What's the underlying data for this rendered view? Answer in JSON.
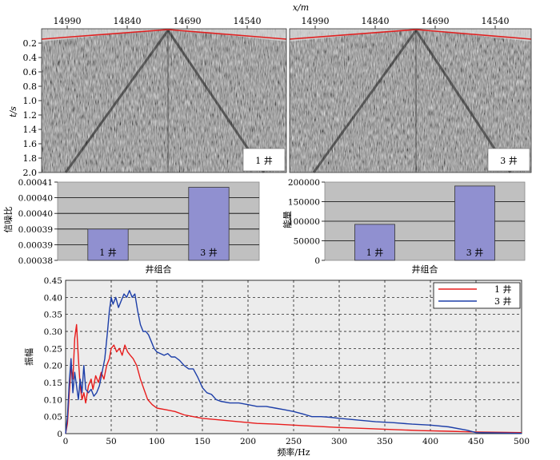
{
  "chart_data": [
    {
      "type": "seismic-image",
      "xlabel": "x/m",
      "ylabel": "t/s",
      "x_ticks": [
        "14990",
        "14840",
        "14690",
        "14540"
      ],
      "y_ticks": [
        "0.2",
        "0.4",
        "0.6",
        "0.8",
        "1.0",
        "1.2",
        "1.4",
        "1.6",
        "1.8",
        "2.0"
      ],
      "ylim": [
        0,
        2.0
      ],
      "panels": [
        {
          "label": "1 井"
        },
        {
          "label": "3 井"
        }
      ]
    },
    {
      "type": "bar",
      "ylabel": "信噪比",
      "xlabel": "井组合",
      "categories": [
        "1 井",
        "3 井"
      ],
      "values": [
        0.000392,
        0.000408
      ],
      "ylim": [
        0.00038,
        0.00041
      ],
      "y_ticks": [
        "0.00041",
        "0.00040",
        "0.00040",
        "0.00039",
        "0.00039",
        "0.00038"
      ],
      "bar_color": "#9090d0"
    },
    {
      "type": "bar",
      "ylabel": "能量",
      "xlabel": "井组合",
      "categories": [
        "1 井",
        "3 井"
      ],
      "values": [
        92000,
        190000
      ],
      "ylim": [
        0,
        200000
      ],
      "y_ticks": [
        "200000",
        "150000",
        "100000",
        "50000",
        "0"
      ],
      "bar_color": "#9090d0"
    },
    {
      "type": "line",
      "xlabel": "频率/Hz",
      "ylabel": "振幅",
      "xlim": [
        0,
        500
      ],
      "ylim": [
        0,
        0.45
      ],
      "x_ticks": [
        "0",
        "50",
        "100",
        "150",
        "200",
        "250",
        "300",
        "350",
        "400",
        "450",
        "500"
      ],
      "y_ticks": [
        "0",
        "0.05",
        "0.10",
        "0.15",
        "0.20",
        "0.25",
        "0.30",
        "0.35",
        "0.40",
        "0.45"
      ],
      "legend_position": "top-right",
      "series": [
        {
          "name": "1 井",
          "color": "#e81c1c",
          "points": [
            [
              0,
              0
            ],
            [
              2,
              0.03
            ],
            [
              4,
              0.12
            ],
            [
              6,
              0.2
            ],
            [
              8,
              0.16
            ],
            [
              10,
              0.28
            ],
            [
              12,
              0.32
            ],
            [
              14,
              0.22
            ],
            [
              16,
              0.14
            ],
            [
              18,
              0.1
            ],
            [
              20,
              0.12
            ],
            [
              22,
              0.09
            ],
            [
              25,
              0.14
            ],
            [
              28,
              0.16
            ],
            [
              30,
              0.13
            ],
            [
              33,
              0.17
            ],
            [
              36,
              0.15
            ],
            [
              39,
              0.18
            ],
            [
              42,
              0.16
            ],
            [
              45,
              0.2
            ],
            [
              48,
              0.22
            ],
            [
              50,
              0.25
            ],
            [
              53,
              0.26
            ],
            [
              56,
              0.24
            ],
            [
              59,
              0.25
            ],
            [
              62,
              0.23
            ],
            [
              65,
              0.26
            ],
            [
              68,
              0.24
            ],
            [
              71,
              0.23
            ],
            [
              74,
              0.22
            ],
            [
              78,
              0.2
            ],
            [
              82,
              0.16
            ],
            [
              86,
              0.13
            ],
            [
              90,
              0.1
            ],
            [
              95,
              0.085
            ],
            [
              100,
              0.075
            ],
            [
              110,
              0.07
            ],
            [
              120,
              0.065
            ],
            [
              130,
              0.055
            ],
            [
              140,
              0.05
            ],
            [
              150,
              0.045
            ],
            [
              170,
              0.04
            ],
            [
              190,
              0.035
            ],
            [
              210,
              0.03
            ],
            [
              230,
              0.028
            ],
            [
              250,
              0.025
            ],
            [
              270,
              0.022
            ],
            [
              300,
              0.018
            ],
            [
              330,
              0.015
            ],
            [
              360,
              0.012
            ],
            [
              390,
              0.009
            ],
            [
              420,
              0.007
            ],
            [
              450,
              0.005
            ],
            [
              500,
              0.003
            ]
          ]
        },
        {
          "name": "3 井",
          "color": "#1c3ea8",
          "points": [
            [
              0,
              0
            ],
            [
              2,
              0.05
            ],
            [
              4,
              0.15
            ],
            [
              6,
              0.22
            ],
            [
              8,
              0.12
            ],
            [
              10,
              0.18
            ],
            [
              12,
              0.14
            ],
            [
              14,
              0.1
            ],
            [
              16,
              0.16
            ],
            [
              18,
              0.12
            ],
            [
              20,
              0.2
            ],
            [
              22,
              0.13
            ],
            [
              25,
              0.12
            ],
            [
              28,
              0.13
            ],
            [
              31,
              0.11
            ],
            [
              34,
              0.12
            ],
            [
              37,
              0.14
            ],
            [
              40,
              0.18
            ],
            [
              43,
              0.22
            ],
            [
              46,
              0.3
            ],
            [
              48,
              0.36
            ],
            [
              50,
              0.4
            ],
            [
              52,
              0.38
            ],
            [
              55,
              0.4
            ],
            [
              58,
              0.37
            ],
            [
              61,
              0.39
            ],
            [
              64,
              0.41
            ],
            [
              67,
              0.4
            ],
            [
              70,
              0.42
            ],
            [
              73,
              0.4
            ],
            [
              76,
              0.41
            ],
            [
              79,
              0.36
            ],
            [
              82,
              0.32
            ],
            [
              85,
              0.3
            ],
            [
              88,
              0.3
            ],
            [
              91,
              0.29
            ],
            [
              94,
              0.27
            ],
            [
              97,
              0.25
            ],
            [
              100,
              0.24
            ],
            [
              104,
              0.235
            ],
            [
              108,
              0.23
            ],
            [
              112,
              0.235
            ],
            [
              116,
              0.225
            ],
            [
              120,
              0.225
            ],
            [
              125,
              0.215
            ],
            [
              130,
              0.2
            ],
            [
              135,
              0.19
            ],
            [
              140,
              0.19
            ],
            [
              145,
              0.165
            ],
            [
              150,
              0.135
            ],
            [
              155,
              0.12
            ],
            [
              160,
              0.115
            ],
            [
              165,
              0.1
            ],
            [
              170,
              0.095
            ],
            [
              180,
              0.09
            ],
            [
              190,
              0.09
            ],
            [
              200,
              0.085
            ],
            [
              210,
              0.08
            ],
            [
              220,
              0.08
            ],
            [
              230,
              0.075
            ],
            [
              240,
              0.07
            ],
            [
              250,
              0.065
            ],
            [
              260,
              0.058
            ],
            [
              270,
              0.05
            ],
            [
              280,
              0.05
            ],
            [
              290,
              0.048
            ],
            [
              300,
              0.045
            ],
            [
              320,
              0.04
            ],
            [
              340,
              0.035
            ],
            [
              360,
              0.032
            ],
            [
              380,
              0.028
            ],
            [
              400,
              0.025
            ],
            [
              420,
              0.02
            ],
            [
              440,
              0.01
            ],
            [
              450,
              0.003
            ],
            [
              500,
              0.001
            ]
          ]
        }
      ]
    }
  ]
}
